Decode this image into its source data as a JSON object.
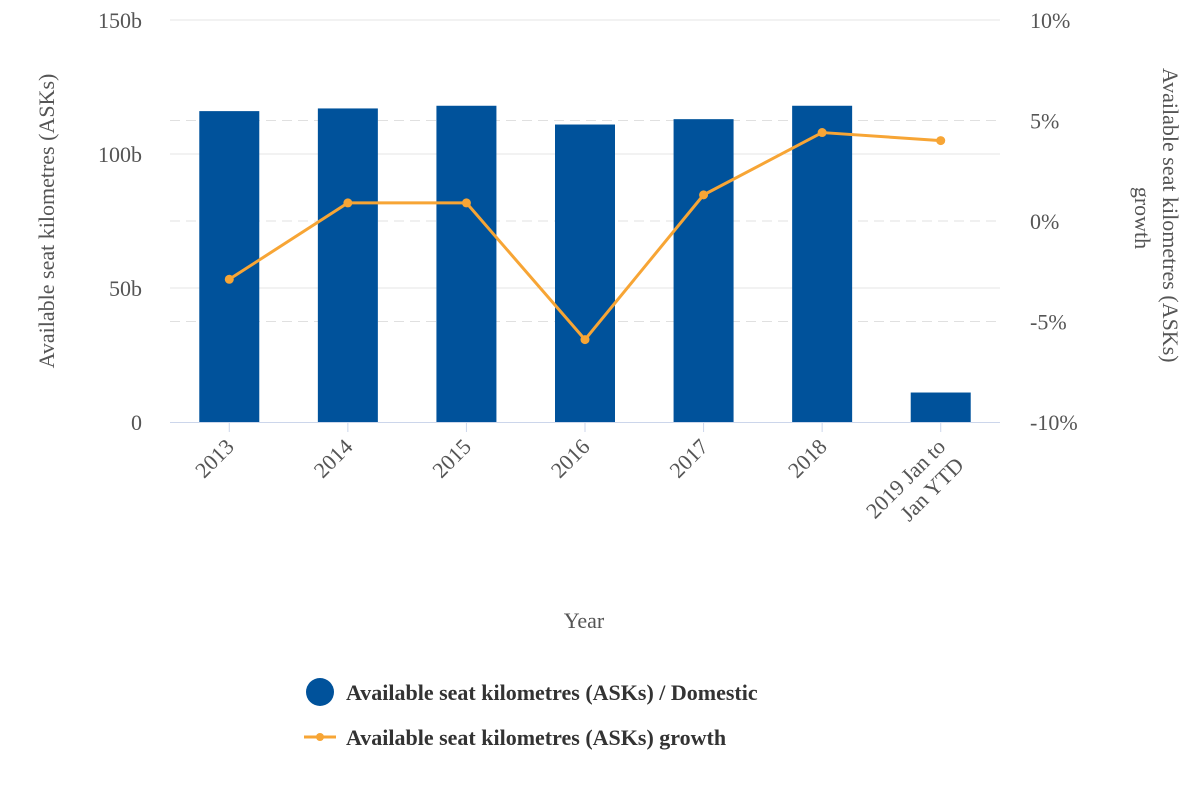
{
  "chart_data": {
    "type": "bar+line",
    "categories": [
      "2013",
      "2014",
      "2015",
      "2016",
      "2017",
      "2018",
      "2019 Jan to Jan YTD"
    ],
    "category_lines": [
      [
        "2013"
      ],
      [
        "2014"
      ],
      [
        "2015"
      ],
      [
        "2016"
      ],
      [
        "2017"
      ],
      [
        "2018"
      ],
      [
        "2019 Jan to",
        "Jan YTD"
      ]
    ],
    "series": [
      {
        "name": "Available seat kilometres (ASKs) / Domestic",
        "type": "bar",
        "axis": "left",
        "color": "#00529b",
        "values": [
          116,
          117,
          118,
          111,
          113,
          118,
          11
        ]
      },
      {
        "name": "Available seat kilometres (ASKs) growth",
        "type": "line",
        "axis": "right",
        "color": "#f7a535",
        "values": [
          -2.9,
          0.9,
          0.9,
          -5.9,
          1.3,
          4.4,
          4.0
        ]
      }
    ],
    "xlabel": "Year",
    "ylabel_left": "Available seat kilometres (ASKs)",
    "ylabel_right": "Available seat kilometres (ASKs) growth",
    "ylabel_right_lines": [
      "Available seat kilometres (ASKs)",
      "growth"
    ],
    "ylim_left": [
      0,
      150
    ],
    "yticks_left": [
      0,
      50,
      100,
      150
    ],
    "ytick_labels_left": [
      "0",
      "50b",
      "100b",
      "150b"
    ],
    "ylim_right": [
      -10,
      10
    ],
    "yticks_right": [
      -10,
      -5,
      0,
      5,
      10
    ],
    "ytick_labels_right": [
      "-10%",
      "-5%",
      "0%",
      "5%",
      "10%"
    ],
    "grid": true,
    "legend_position": "bottom-center"
  }
}
